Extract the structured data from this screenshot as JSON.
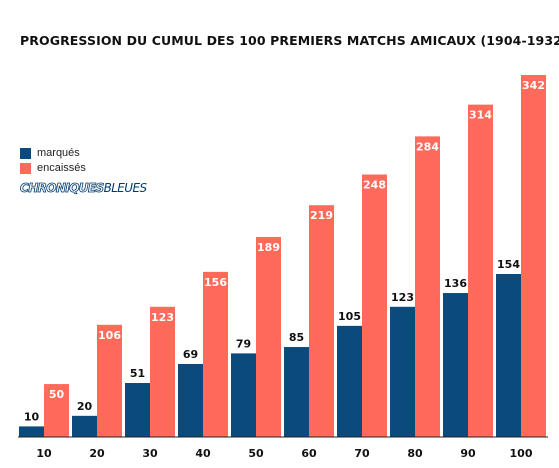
{
  "chart_data": {
    "type": "bar",
    "title": "PROGRESSION DU CUMUL DES 100 PREMIERS MATCHS AMICAUX (1904-1932)",
    "xlabel": "",
    "ylabel": "",
    "categories": [
      "10",
      "20",
      "30",
      "40",
      "50",
      "60",
      "70",
      "80",
      "90",
      "100"
    ],
    "series": [
      {
        "name": "marqués",
        "color": "#0b4a7d",
        "label_color": "#111111",
        "values": [
          10,
          20,
          51,
          69,
          79,
          85,
          105,
          123,
          136,
          154
        ]
      },
      {
        "name": "encaissés",
        "color": "#ff6a5a",
        "label_color": "#ffffff",
        "values": [
          50,
          106,
          123,
          156,
          189,
          219,
          248,
          284,
          314,
          342
        ]
      }
    ],
    "ylim": [
      0,
      342
    ],
    "grid": false,
    "legend_position": "left"
  },
  "brand": {
    "part1": "CHRONIQUES",
    "part2": "BLEUES",
    "color": "#003b6f"
  }
}
